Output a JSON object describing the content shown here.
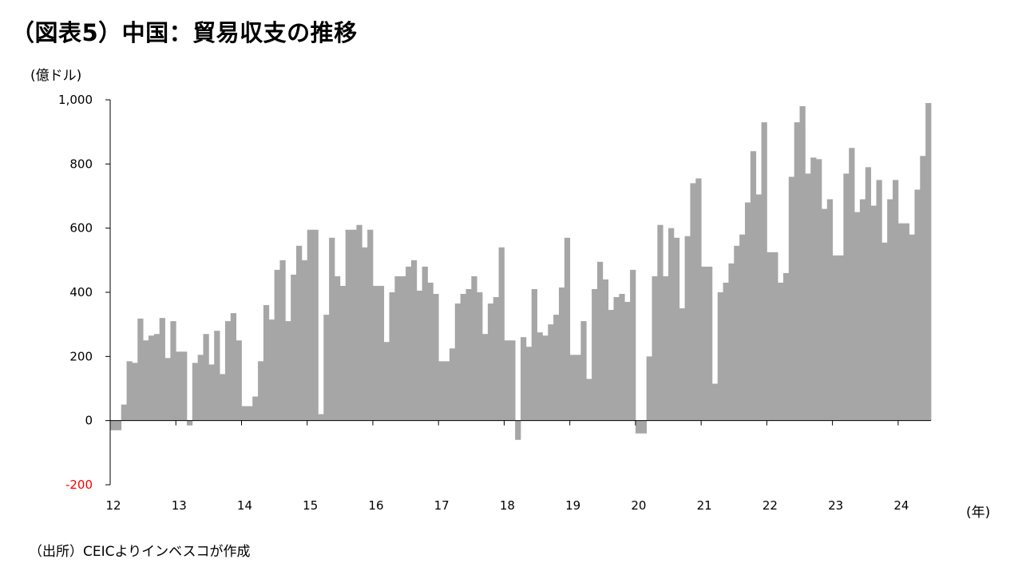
{
  "header": {
    "title": "（図表5）中国：貿易収支の推移",
    "y_unit": "(億ドル)",
    "x_unit": "(年)"
  },
  "footer": {
    "source": "（出所）CEICよりインベスコが作成"
  },
  "colors": {
    "bar": "#a6a6a6",
    "axis": "#000000",
    "negative_label": "#ff0000"
  },
  "chart_data": {
    "type": "bar",
    "title": "（図表5）中国：貿易収支の推移",
    "ylabel": "(億ドル)",
    "xlabel": "(年)",
    "ylim": [
      -200,
      1000
    ],
    "yticks": [
      -200,
      0,
      200,
      400,
      600,
      800,
      1000
    ],
    "ytick_labels": [
      "-200",
      "0",
      "200",
      "400",
      "600",
      "800",
      "1,000"
    ],
    "xtick_labels": [
      "12",
      "13",
      "14",
      "15",
      "16",
      "17",
      "18",
      "19",
      "20",
      "21",
      "22",
      "23",
      "24"
    ],
    "grid": false,
    "legend": "none",
    "frequency": "monthly",
    "start": "2012-01",
    "end": "2024-06",
    "values": [
      -30,
      -30,
      50,
      185,
      180,
      318,
      250,
      265,
      270,
      320,
      195,
      310,
      215,
      215,
      -15,
      180,
      205,
      270,
      175,
      280,
      145,
      310,
      335,
      250,
      45,
      45,
      75,
      185,
      360,
      315,
      470,
      500,
      310,
      455,
      545,
      500,
      595,
      595,
      20,
      330,
      570,
      450,
      420,
      595,
      595,
      610,
      540,
      595,
      420,
      420,
      245,
      400,
      450,
      450,
      480,
      500,
      405,
      480,
      430,
      395,
      185,
      185,
      225,
      365,
      395,
      410,
      450,
      400,
      270,
      365,
      385,
      540,
      250,
      250,
      -60,
      260,
      230,
      410,
      275,
      265,
      300,
      330,
      415,
      570,
      205,
      205,
      310,
      130,
      410,
      495,
      440,
      345,
      385,
      395,
      370,
      470,
      -40,
      -40,
      200,
      450,
      610,
      450,
      600,
      570,
      350,
      575,
      740,
      755,
      480,
      480,
      115,
      400,
      430,
      490,
      545,
      580,
      680,
      840,
      705,
      930,
      525,
      525,
      430,
      460,
      760,
      930,
      980,
      770,
      820,
      815,
      660,
      690,
      515,
      515,
      770,
      850,
      650,
      690,
      790,
      670,
      750,
      555,
      690,
      750,
      615,
      615,
      580,
      720,
      825,
      990
    ]
  }
}
